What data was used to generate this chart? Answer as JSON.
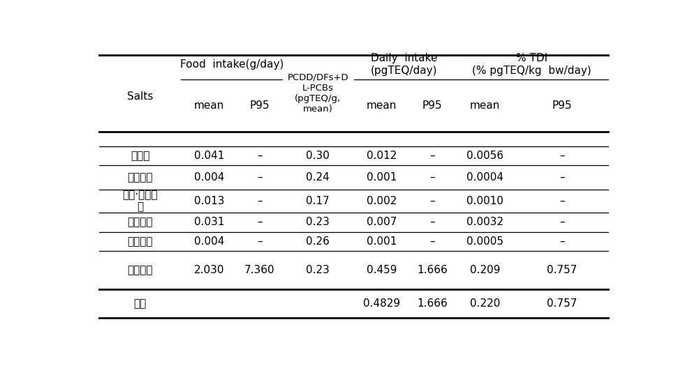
{
  "salts_col": [
    "천일염",
    "재제소금",
    "태움·용융소금",
    "정제소금",
    "기타소금",
    "가공소금",
    "총계"
  ],
  "salts_wrap": [
    false,
    false,
    true,
    false,
    false,
    false,
    false
  ],
  "rows": [
    [
      "0.041",
      "–",
      "0.30",
      "0.012",
      "–",
      "0.0056",
      "–"
    ],
    [
      "0.004",
      "–",
      "0.24",
      "0.001",
      "–",
      "0.0004",
      "–"
    ],
    [
      "0.013",
      "–",
      "0.17",
      "0.002",
      "–",
      "0.0010",
      "–"
    ],
    [
      "0.031",
      "–",
      "0.23",
      "0.007",
      "–",
      "0.0032",
      "–"
    ],
    [
      "0.004",
      "–",
      "0.26",
      "0.001",
      "–",
      "0.0005",
      "–"
    ],
    [
      "2.030",
      "7.360",
      "0.23",
      "0.459",
      "1.666",
      "0.209",
      "0.757"
    ],
    [
      "",
      "",
      "",
      "0.4829",
      "1.666",
      "0.220",
      "0.757"
    ]
  ],
  "background_color": "#ffffff",
  "text_color": "#000000",
  "font_size": 11,
  "header_font_size": 11,
  "small_font_size": 9.5
}
